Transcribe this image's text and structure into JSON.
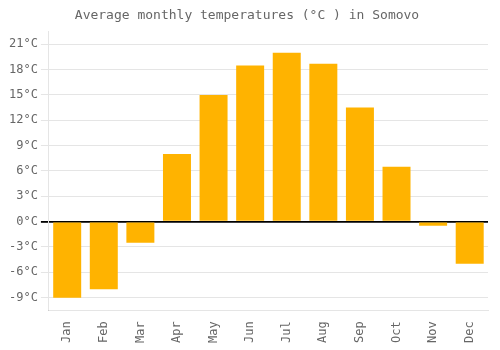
{
  "chart_data": {
    "type": "bar",
    "title": "Average monthly temperatures (°C ) in Somovo",
    "categories": [
      "Jan",
      "Feb",
      "Mar",
      "Apr",
      "May",
      "Jun",
      "Jul",
      "Aug",
      "Sep",
      "Oct",
      "Nov",
      "Dec"
    ],
    "values": [
      -9.0,
      -8.0,
      -2.5,
      8.0,
      15.0,
      18.5,
      20.0,
      18.7,
      13.5,
      6.5,
      -0.5,
      -5.0
    ],
    "color": "#FFB300",
    "ylim": [
      -10.5,
      22.5
    ],
    "yticks": [
      {
        "value": -9,
        "label": "-9°C"
      },
      {
        "value": -6,
        "label": "-6°C"
      },
      {
        "value": -3,
        "label": "-3°C"
      },
      {
        "value": 0,
        "label": "0°C"
      },
      {
        "value": 3,
        "label": "3°C"
      },
      {
        "value": 6,
        "label": "6°C"
      },
      {
        "value": 9,
        "label": "9°C"
      },
      {
        "value": 12,
        "label": "12°C"
      },
      {
        "value": 15,
        "label": "15°C"
      },
      {
        "value": 18,
        "label": "18°C"
      },
      {
        "value": 21,
        "label": "21°C"
      }
    ],
    "grid": true
  }
}
